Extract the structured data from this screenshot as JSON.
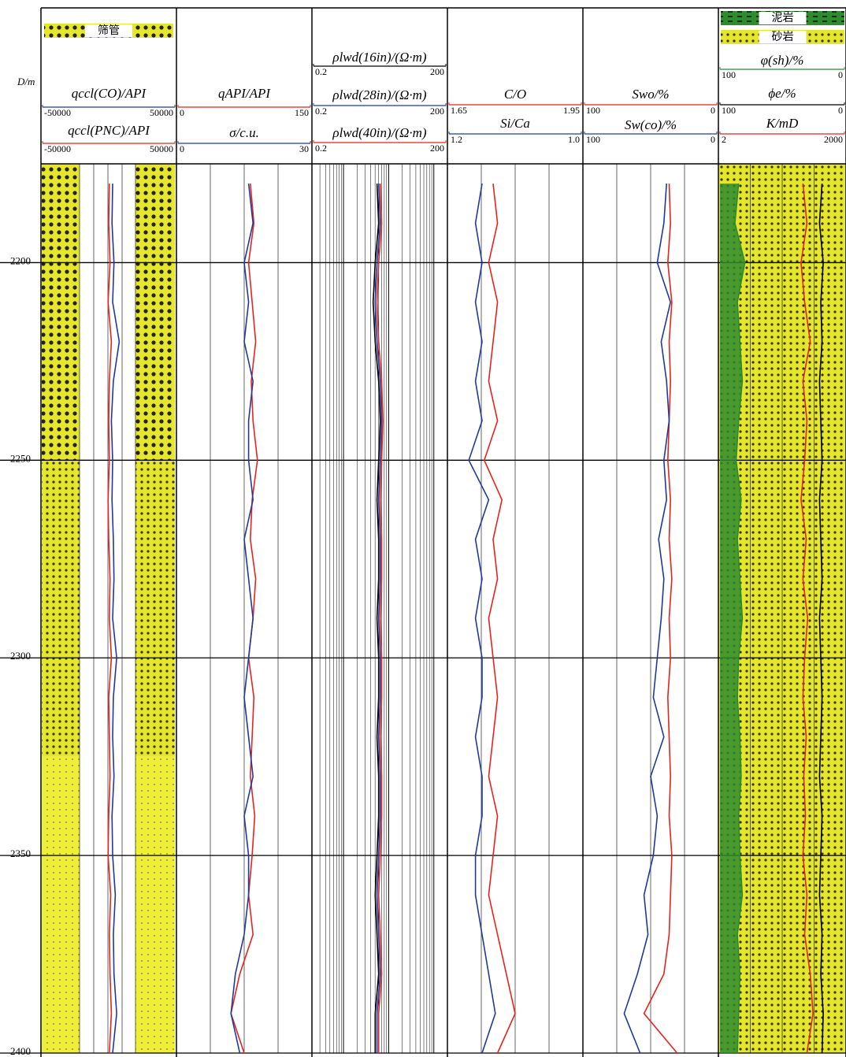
{
  "chart_data": {
    "type": "well-log",
    "depth_label": "D/m",
    "ylim": [
      2175,
      2400
    ],
    "yticks": [
      2200,
      2250,
      2300,
      2350,
      2400
    ],
    "grid": true,
    "depth": [
      2180,
      2190,
      2200,
      2210,
      2220,
      2230,
      2240,
      2250,
      2260,
      2270,
      2280,
      2290,
      2300,
      2310,
      2320,
      2330,
      2340,
      2350,
      2360,
      2370,
      2380,
      2390,
      2400
    ],
    "tracks": [
      {
        "lithology": [
          "筛管"
        ],
        "series": [
          {
            "name": "qccl(CO)/API",
            "color": "#1f3a9e",
            "xlim": [
              -50000,
              50000
            ],
            "xticks": [
              -50000,
              50000
            ],
            "values": [
              3000,
              2500,
              4000,
              3000,
              8000,
              3500,
              2000,
              3000,
              2500,
              3500,
              4000,
              3000,
              6000,
              3500,
              3000,
              4000,
              2500,
              3000,
              5000,
              3500,
              4000,
              6000,
              3000
            ]
          },
          {
            "name": "qccl(PNC)/API",
            "color": "#e8231e",
            "xlim": [
              -50000,
              50000
            ],
            "xticks": [
              -50000,
              50000
            ],
            "values": [
              500,
              0,
              1000,
              -500,
              2000,
              500,
              0,
              500,
              -500,
              0,
              1000,
              500,
              2000,
              0,
              500,
              1000,
              0,
              -500,
              1500,
              500,
              1000,
              2000,
              500
            ]
          }
        ]
      },
      {
        "series": [
          {
            "name": "qAPI/API",
            "color": "#e8231e",
            "xlim": [
              0,
              150
            ],
            "xticks": [
              0,
              150
            ],
            "values": [
              82,
              86,
              80,
              84,
              88,
              83,
              85,
              90,
              84,
              82,
              88,
              85,
              80,
              86,
              84,
              82,
              87,
              84,
              80,
              85,
              70,
              60,
              75
            ]
          },
          {
            "name": "σ/c.u.",
            "color": "#1f3a9e",
            "xlim": [
              0,
              30
            ],
            "xticks": [
              0,
              30
            ],
            "values": [
              16,
              17,
              15,
              16,
              15,
              17,
              16,
              16,
              17,
              15,
              16,
              17,
              16,
              15,
              16,
              17,
              15,
              16,
              16,
              15,
              13,
              12,
              14
            ]
          }
        ]
      },
      {
        "series": [
          {
            "name": "ρlwd(16in)/(Ω·m)",
            "color": "#000000",
            "log": true,
            "xlim": [
              0.2,
              200
            ],
            "xticks": [
              0.2,
              200
            ],
            "values": [
              5.5,
              6,
              5,
              4.5,
              5,
              6,
              6.5,
              6,
              5.5,
              6,
              6,
              5.5,
              6,
              6,
              5.5,
              6,
              6,
              5.5,
              5,
              5.5,
              6,
              5,
              5
            ]
          },
          {
            "name": "ρlwd(28in)/(Ω·m)",
            "color": "#1f3a9e",
            "log": true,
            "xlim": [
              0.2,
              200
            ],
            "xticks": [
              0.2,
              200
            ],
            "values": [
              6,
              6.5,
              5.5,
              5,
              5.5,
              6.5,
              7,
              6.5,
              6,
              6.5,
              6.5,
              6,
              6.5,
              6.5,
              6,
              6.5,
              6.5,
              6,
              5.5,
              6,
              6.5,
              5.5,
              5.5
            ]
          },
          {
            "name": "ρlwd(40in)/(Ω·m)",
            "color": "#e8231e",
            "log": true,
            "xlim": [
              0.2,
              200
            ],
            "xticks": [
              0.2,
              200
            ],
            "values": [
              6.5,
              7,
              6,
              5.5,
              6,
              7,
              7.5,
              7,
              6.5,
              7,
              7,
              6.5,
              7,
              7,
              6.5,
              7,
              7,
              6.5,
              6,
              6.5,
              7,
              6,
              6
            ]
          }
        ]
      },
      {
        "series": [
          {
            "name": "C/O",
            "color": "#e8231e",
            "xlim": [
              1.65,
              1.95
            ],
            "xticks": [
              1.65,
              1.95
            ],
            "values": [
              1.75,
              1.76,
              1.74,
              1.76,
              1.75,
              1.74,
              1.76,
              1.73,
              1.77,
              1.75,
              1.76,
              1.74,
              1.75,
              1.76,
              1.75,
              1.74,
              1.76,
              1.75,
              1.74,
              1.76,
              1.78,
              1.8,
              1.76
            ]
          },
          {
            "name": "Si/Ca",
            "color": "#1f3a9e",
            "xlim": [
              1.2,
              1.0
            ],
            "xticks": [
              1.2,
              {
                "value": 1.0,
                "label": "1.0"
              }
            ],
            "values": [
              1.15,
              1.16,
              1.15,
              1.16,
              1.15,
              1.16,
              1.15,
              1.17,
              1.14,
              1.16,
              1.15,
              1.16,
              1.15,
              1.15,
              1.16,
              1.15,
              1.15,
              1.16,
              1.16,
              1.15,
              1.14,
              1.13,
              1.15
            ]
          }
        ]
      },
      {
        "series": [
          {
            "name": "Swo/%",
            "color": "#e8231e",
            "xlim": [
              100,
              0
            ],
            "xticks": [
              100,
              0
            ],
            "values": [
              36,
              35,
              37,
              34,
              36,
              35,
              36,
              37,
              35,
              36,
              34,
              36,
              35,
              37,
              36,
              35,
              36,
              34,
              35,
              36,
              40,
              55,
              30
            ]
          },
          {
            "name": "Sw(co)/%",
            "color": "#1f3a9e",
            "xlim": [
              100,
              0
            ],
            "xticks": [
              100,
              0
            ],
            "values": [
              38,
              40,
              45,
              35,
              42,
              38,
              36,
              40,
              38,
              44,
              40,
              42,
              45,
              48,
              40,
              50,
              45,
              48,
              55,
              52,
              60,
              70,
              58
            ]
          }
        ]
      },
      {
        "lithology": [
          "泥岩",
          "砂岩"
        ],
        "series": [
          {
            "name": "φ(sh)/%",
            "color": "#2e8b2e",
            "xlim": [
              100,
              0
            ],
            "xticks": [
              100,
              0
            ],
            "values": [
              85,
              88,
              80,
              86,
              84,
              82,
              85,
              87,
              83,
              86,
              84,
              82,
              85,
              86,
              84,
              83,
              85,
              84,
              82,
              86,
              84,
              85,
              86
            ]
          },
          {
            "name": "ϕe/%",
            "color": "#000000",
            "xlim": [
              100,
              0
            ],
            "xticks": [
              100,
              0
            ],
            "values": [
              18,
              20,
              17,
              19,
              18,
              20,
              19,
              18,
              20,
              19,
              18,
              20,
              19,
              18,
              19,
              20,
              18,
              19,
              20,
              18,
              19,
              17,
              18
            ]
          },
          {
            "name": "K/mD",
            "color": "#e8231e",
            "log": true,
            "xlim": [
              2,
              2000
            ],
            "xticks": [
              2,
              2000
            ],
            "values": [
              200,
              250,
              180,
              220,
              300,
              200,
              250,
              220,
              180,
              240,
              200,
              260,
              220,
              200,
              240,
              210,
              230,
              200,
              250,
              220,
              300,
              350,
              250
            ]
          }
        ]
      }
    ]
  }
}
